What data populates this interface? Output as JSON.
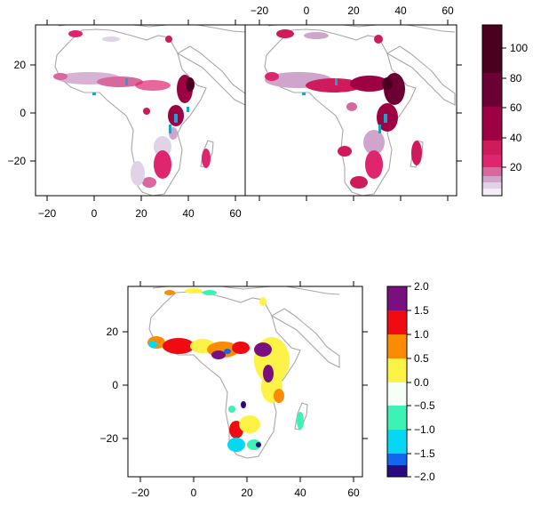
{
  "top_panels": {
    "panels": [
      {
        "id": "left",
        "bottom_axis": true,
        "top_axis": false
      },
      {
        "id": "right",
        "bottom_axis": false,
        "top_axis": true
      }
    ],
    "x_ticks": [
      "−20",
      "0",
      "20",
      "40",
      "60"
    ],
    "y_ticks": [
      "20",
      "0",
      "−20"
    ],
    "colorbar": {
      "labels": [
        "100",
        "80",
        "60",
        "40",
        "20"
      ],
      "colors": [
        "#f3eef7",
        "#e0d3e8",
        "#cfa5cc",
        "#d9689f",
        "#e0256f",
        "#cf1a5b",
        "#9d0043",
        "#6a0033",
        "#4c001f"
      ]
    }
  },
  "bottom_panel": {
    "x_ticks": [
      "−20",
      "0",
      "20",
      "40",
      "60"
    ],
    "y_ticks": [
      "20",
      "0",
      "−20"
    ],
    "colorbar": {
      "labels": [
        "2.0",
        "1.5",
        "1.0",
        "0.5",
        "0.0",
        "−0.5",
        "−1.0",
        "−1.5",
        "−2.0"
      ],
      "colors": [
        "#7a0f7f",
        "#f00a12",
        "#fb8b00",
        "#fdf246",
        "#f5fff7",
        "#3cf2b5",
        "#05d8f5",
        "#1267ee",
        "#2a0a7f"
      ]
    }
  }
}
